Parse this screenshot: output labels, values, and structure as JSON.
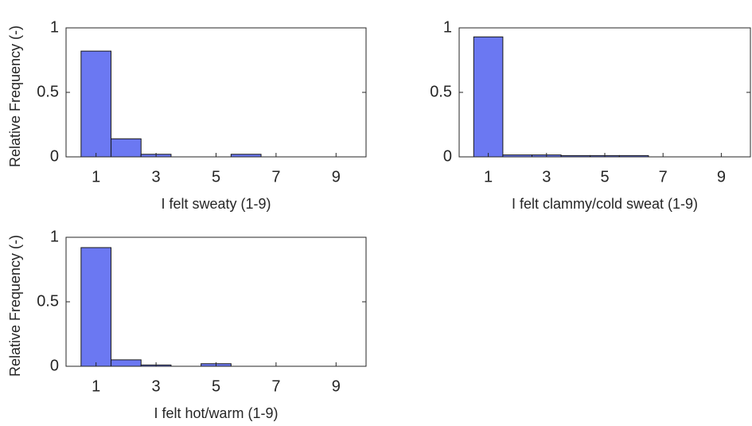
{
  "chart_data": [
    {
      "type": "bar",
      "xlabel": "I felt sweaty (1-9)",
      "ylabel": "Relative Frequency (-)",
      "x": [
        1,
        2,
        3,
        4,
        5,
        6,
        7,
        8,
        9
      ],
      "values": [
        0.82,
        0.14,
        0.02,
        0,
        0,
        0.02,
        0,
        0,
        0
      ],
      "color": "#6b78f2",
      "xlim": [
        0,
        10
      ],
      "xticks": [
        1,
        3,
        5,
        7,
        9
      ],
      "ylim": [
        0,
        1
      ],
      "yticks": [
        0,
        0.5,
        1
      ]
    },
    {
      "type": "bar",
      "xlabel": "I felt clammy/cold sweat (1-9)",
      "x": [
        1,
        2,
        3,
        4,
        5,
        6,
        7,
        8,
        9
      ],
      "values": [
        0.93,
        0.015,
        0.015,
        0.01,
        0.01,
        0.01,
        0,
        0,
        0
      ],
      "color": "#6b78f2",
      "xlim": [
        0,
        10
      ],
      "xticks": [
        1,
        3,
        5,
        7,
        9
      ],
      "ylim": [
        0,
        1
      ],
      "yticks": [
        0,
        0.5,
        1
      ]
    },
    {
      "type": "bar",
      "xlabel": "I felt hot/warm (1-9)",
      "ylabel": "Relative Frequency (-)",
      "x": [
        1,
        2,
        3,
        4,
        5,
        6,
        7,
        8,
        9
      ],
      "values": [
        0.92,
        0.05,
        0.01,
        0,
        0.02,
        0,
        0,
        0,
        0
      ],
      "color": "#6b78f2",
      "xlim": [
        0,
        10
      ],
      "xticks": [
        1,
        3,
        5,
        7,
        9
      ],
      "ylim": [
        0,
        1
      ],
      "yticks": [
        0,
        0.5,
        1
      ]
    }
  ]
}
